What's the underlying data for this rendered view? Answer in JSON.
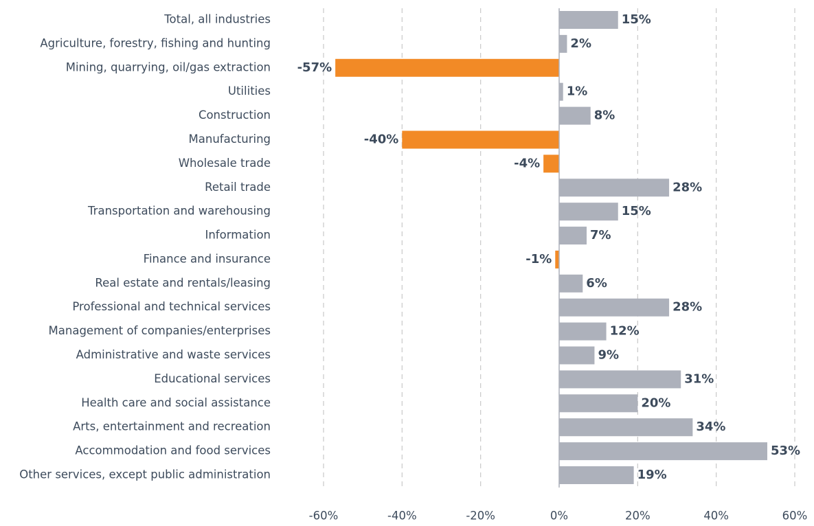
{
  "chart_data": {
    "type": "hbar",
    "categories": [
      "Total, all industries",
      "Agriculture, forestry, fishing and hunting",
      "Mining, quarrying, oil/gas extraction",
      "Utilities",
      "Construction",
      "Manufacturing",
      "Wholesale trade",
      "Retail trade",
      "Transportation and warehousing",
      "Information",
      "Finance and insurance",
      "Real estate and rentals/leasing",
      "Professional and technical services",
      "Management of companies/enterprises",
      "Administrative and waste services",
      "Educational services",
      "Health care and social assistance",
      "Arts, entertainment and recreation",
      "Accommodation and food services",
      "Other services, except public administration"
    ],
    "values": [
      15,
      2,
      -57,
      1,
      8,
      -40,
      -4,
      28,
      15,
      7,
      -1,
      6,
      28,
      12,
      9,
      31,
      20,
      34,
      53,
      19
    ],
    "value_labels": [
      "15%",
      "2%",
      "-57%",
      "1%",
      "8%",
      "-40%",
      "-4%",
      "28%",
      "15%",
      "7%",
      "-1%",
      "6%",
      "28%",
      "12%",
      "9%",
      "31%",
      "20%",
      "34%",
      "53%",
      "19%"
    ],
    "color": "#adb1bb",
    "negative_color": "#f28a26",
    "label_color": "#f28a26",
    "xlim": [
      -60,
      60
    ],
    "xticks": [
      {
        "value": -60,
        "label": "-60%"
      },
      {
        "value": -40,
        "label": "-40%"
      },
      {
        "value": -20,
        "label": "-20%"
      },
      {
        "value": 0,
        "label": "0%"
      },
      {
        "value": 20,
        "label": "20%"
      },
      {
        "value": 40,
        "label": "40%"
      },
      {
        "value": 60,
        "label": "60%"
      }
    ],
    "grid": true
  }
}
